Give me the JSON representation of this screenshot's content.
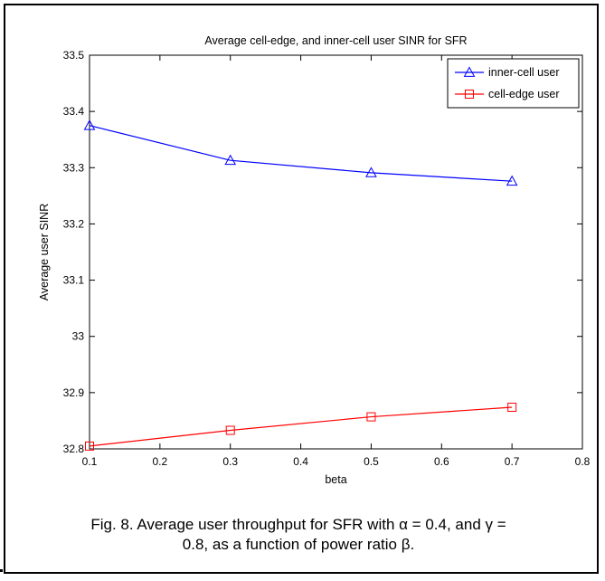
{
  "chart_data": {
    "type": "line",
    "title": "Average cell-edge, and inner-cell user SINR for SFR",
    "xlabel": "beta",
    "ylabel": "Average user SINR",
    "xlim": [
      0.1,
      0.8
    ],
    "ylim": [
      32.8,
      33.5
    ],
    "xticks": [
      "0.1",
      "0.2",
      "0.3",
      "0.4",
      "0.5",
      "0.6",
      "0.7",
      "0.8"
    ],
    "yticks": [
      "32.8",
      "32.9",
      "33",
      "33.1",
      "33.2",
      "33.3",
      "33.4",
      "33.5"
    ],
    "x": [
      0.1,
      0.3,
      0.5,
      0.7
    ],
    "series": [
      {
        "name": "inner-cell user",
        "color": "#0000ff",
        "marker": "triangle",
        "values": [
          33.375,
          33.313,
          33.291,
          33.276
        ]
      },
      {
        "name": "cell-edge user",
        "color": "#ff0000",
        "marker": "square",
        "values": [
          32.805,
          32.833,
          32.857,
          32.874
        ]
      }
    ],
    "grid": false,
    "legend_position": "top-right"
  },
  "caption": {
    "line1": "Fig. 8. Average user throughput for SFR with α = 0.4, and γ =",
    "line2": "0.8, as a function of power ratio β."
  }
}
